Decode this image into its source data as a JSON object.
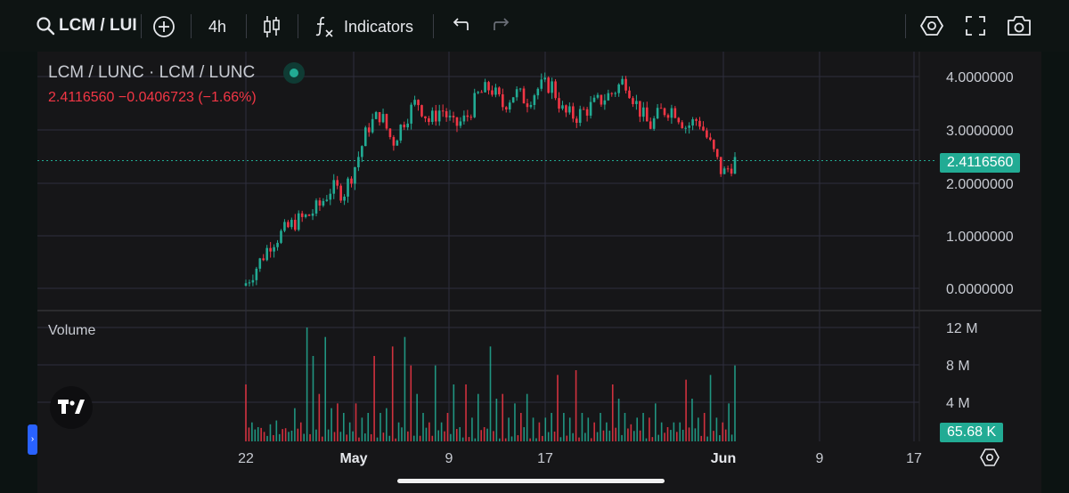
{
  "toolbar": {
    "symbol": "LCM / LUI",
    "interval": "4h",
    "indicators_label": "Indicators",
    "icons": [
      "search-icon",
      "add-icon",
      "candles-icon",
      "fx-icon",
      "undo-icon",
      "redo-icon",
      "settings-icon",
      "fullscreen-icon",
      "camera-icon"
    ]
  },
  "legend": {
    "title": "LCM / LUNC · LCM / LUNC",
    "values": "2.4116560  −0.0406723 (−1.66%)",
    "status_color": "#22ab94"
  },
  "volume_pane": {
    "label": "Volume",
    "current": "65.68 K"
  },
  "colors": {
    "up": "#22ab94",
    "down": "#f23645",
    "background": "#161618",
    "grid": "#2e2e3e"
  },
  "chart_data": {
    "type": "candlestick",
    "price_axis": [
      "4.0000000",
      "3.0000000",
      "2.0000000",
      "1.0000000",
      "0.0000000"
    ],
    "price_range": [
      0,
      4
    ],
    "last_price": "2.4116560",
    "volume_axis": [
      "12 M",
      "8 M",
      "4 M"
    ],
    "volume_range": [
      0,
      12000000
    ],
    "time_axis": [
      "22",
      "May",
      "9",
      "17",
      "Jun",
      "9",
      "17"
    ],
    "close_series": [
      [
        "Apr 22",
        0.1
      ],
      [
        "Apr 23",
        0.45
      ],
      [
        "Apr 24",
        0.85
      ],
      [
        "Apr 25",
        1.05
      ],
      [
        "Apr 26",
        1.25
      ],
      [
        "Apr 27",
        1.35
      ],
      [
        "Apr 28",
        1.55
      ],
      [
        "Apr 29",
        1.9
      ],
      [
        "Apr 30",
        1.8
      ],
      [
        "May 1",
        2.35
      ],
      [
        "May 2",
        3.05
      ],
      [
        "May 3",
        3.3
      ],
      [
        "May 4",
        2.75
      ],
      [
        "May 5",
        3.2
      ],
      [
        "May 6",
        3.55
      ],
      [
        "May 7",
        3.15
      ],
      [
        "May 8",
        3.4
      ],
      [
        "May 9",
        3.05
      ],
      [
        "May 10",
        3.2
      ],
      [
        "May 11",
        3.65
      ],
      [
        "May 12",
        3.8
      ],
      [
        "May 13",
        3.45
      ],
      [
        "May 14",
        3.7
      ],
      [
        "May 15",
        3.55
      ],
      [
        "May 16",
        3.8
      ],
      [
        "May 17",
        3.85
      ],
      [
        "May 18",
        3.3
      ],
      [
        "May 19",
        3.25
      ],
      [
        "May 20",
        3.4
      ],
      [
        "May 21",
        3.55
      ],
      [
        "May 22",
        3.7
      ],
      [
        "May 23",
        3.95
      ],
      [
        "May 24",
        3.45
      ],
      [
        "May 25",
        3.05
      ],
      [
        "May 26",
        3.35
      ],
      [
        "May 27",
        3.4
      ],
      [
        "May 28",
        3.05
      ],
      [
        "May 29",
        3.2
      ],
      [
        "May 30",
        2.7
      ],
      [
        "May 31",
        2.15
      ],
      [
        "Jun 1",
        2.41
      ]
    ],
    "volume_series_millions": [
      6,
      2,
      1.5,
      1,
      1.8,
      2.2,
      1.3,
      1,
      3.5,
      2,
      12,
      9,
      5,
      11,
      3.5,
      4,
      3,
      2,
      4,
      2.5,
      3,
      9,
      3,
      3.5,
      10,
      2,
      11,
      8,
      5,
      3,
      2,
      8,
      2,
      3,
      6,
      1.5,
      6,
      2.5,
      5,
      1.5,
      10,
      4.5,
      5,
      2.5,
      4,
      3,
      5,
      2.5,
      2,
      2.5,
      3,
      7,
      3,
      2.5,
      7.5,
      3,
      2.5,
      2,
      3,
      2,
      6,
      4.5,
      3,
      1.8,
      2.5,
      3,
      2.5,
      4,
      2,
      1.5,
      2,
      2,
      6.5,
      4.5,
      2.5,
      3,
      7,
      2.5,
      2,
      4,
      8
    ]
  }
}
